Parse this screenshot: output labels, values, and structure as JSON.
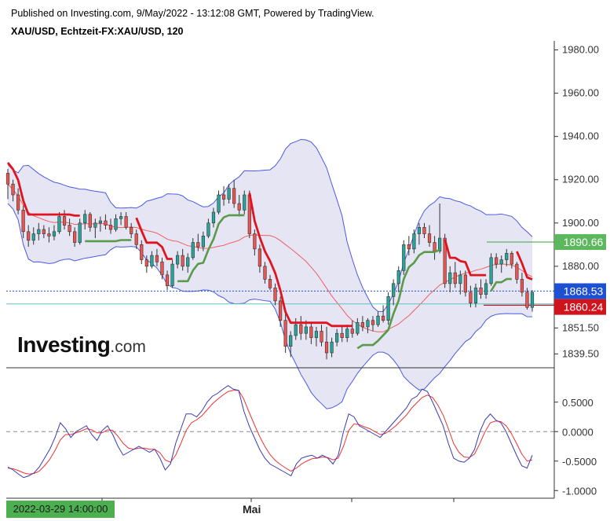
{
  "header": {
    "published": "Published on Investing.com, 9/May/2022 - 13:12:08 GMT, Powered by TradingView.",
    "symbol": "XAU/USD, Echtzeit-FX:XAU/USD, 120"
  },
  "logo": {
    "brand": "Investing",
    "suffix": ".com"
  },
  "x_axis": {
    "date_badge": "2022-03-29 14:00:00",
    "month_label": "Mai"
  },
  "colors": {
    "bull": "#26a69a",
    "bear": "#ef5350",
    "supertrend_up": "#5a9a4a",
    "supertrend_down": "#e0141e",
    "band_fill": "#e5e5f4",
    "band_line": "#4a5ae0",
    "ma_line": "#f06060",
    "osc_fast": "#3a3ab0",
    "osc_slow": "#ee3333",
    "current_price": "#1e50d2",
    "level_low": "#d0141e",
    "level_high": "#5cb85c",
    "teal_line": "#62c2c2"
  },
  "chart_data": [
    {
      "type": "candlestick",
      "title": "XAU/USD, Echtzeit-FX:XAU/USD, 120",
      "price_axis_ticks": [
        "1980.00",
        "1960.00",
        "1940.00",
        "1920.00",
        "1900.00",
        "1880.00",
        "1851.50",
        "1839.50"
      ],
      "ylim": [
        1836,
        1982
      ],
      "price_labels": [
        {
          "text": "1890.66",
          "kind": "level_high"
        },
        {
          "text": "1868.53",
          "kind": "current"
        },
        {
          "text": "1860.24",
          "kind": "level_low"
        }
      ],
      "candles": [
        [
          1923,
          1925,
          1911,
          1918
        ],
        [
          1918,
          1920,
          1910,
          1913
        ],
        [
          1913,
          1916,
          1904,
          1906
        ],
        [
          1906,
          1908,
          1893,
          1896
        ],
        [
          1896,
          1899,
          1889,
          1892
        ],
        [
          1892,
          1898,
          1890,
          1895
        ],
        [
          1895,
          1900,
          1892,
          1897
        ],
        [
          1897,
          1899,
          1893,
          1895
        ],
        [
          1895,
          1898,
          1891,
          1894
        ],
        [
          1894,
          1899,
          1892,
          1896
        ],
        [
          1896,
          1905,
          1895,
          1903
        ],
        [
          1903,
          1906,
          1897,
          1899
        ],
        [
          1899,
          1902,
          1894,
          1896
        ],
        [
          1896,
          1898,
          1889,
          1891
        ],
        [
          1891,
          1902,
          1890,
          1900
        ],
        [
          1900,
          1906,
          1897,
          1904
        ],
        [
          1904,
          1905,
          1896,
          1898
        ],
        [
          1898,
          1902,
          1893,
          1900
        ],
        [
          1900,
          1903,
          1896,
          1901
        ],
        [
          1901,
          1904,
          1897,
          1899
        ],
        [
          1899,
          1902,
          1895,
          1897
        ],
        [
          1897,
          1904,
          1896,
          1902
        ],
        [
          1902,
          1905,
          1899,
          1903
        ],
        [
          1903,
          1905,
          1897,
          1898
        ],
        [
          1898,
          1900,
          1893,
          1895
        ],
        [
          1895,
          1897,
          1888,
          1890
        ],
        [
          1890,
          1892,
          1881,
          1883
        ],
        [
          1883,
          1885,
          1877,
          1880
        ],
        [
          1880,
          1887,
          1879,
          1885
        ],
        [
          1885,
          1888,
          1880,
          1882
        ],
        [
          1882,
          1884,
          1874,
          1876
        ],
        [
          1876,
          1878,
          1869,
          1871
        ],
        [
          1871,
          1883,
          1870,
          1881
        ],
        [
          1881,
          1887,
          1879,
          1885
        ],
        [
          1885,
          1888,
          1878,
          1880
        ],
        [
          1880,
          1886,
          1877,
          1884
        ],
        [
          1884,
          1893,
          1883,
          1891
        ],
        [
          1891,
          1895,
          1887,
          1889
        ],
        [
          1889,
          1896,
          1887,
          1894
        ],
        [
          1894,
          1902,
          1893,
          1900
        ],
        [
          1900,
          1907,
          1898,
          1905
        ],
        [
          1905,
          1915,
          1904,
          1913
        ],
        [
          1913,
          1917,
          1908,
          1911
        ],
        [
          1911,
          1918,
          1909,
          1916
        ],
        [
          1916,
          1920,
          1907,
          1909
        ],
        [
          1909,
          1913,
          1903,
          1906
        ],
        [
          1906,
          1915,
          1904,
          1913
        ],
        [
          1913,
          1915,
          1893,
          1895
        ],
        [
          1895,
          1897,
          1885,
          1888
        ],
        [
          1888,
          1890,
          1877,
          1880
        ],
        [
          1880,
          1882,
          1872,
          1874
        ],
        [
          1874,
          1876,
          1869,
          1870
        ],
        [
          1870,
          1872,
          1862,
          1864
        ],
        [
          1864,
          1866,
          1852,
          1855
        ],
        [
          1855,
          1858,
          1840,
          1843
        ],
        [
          1843,
          1850,
          1838,
          1848
        ],
        [
          1848,
          1856,
          1846,
          1853
        ],
        [
          1853,
          1857,
          1846,
          1849
        ],
        [
          1849,
          1855,
          1846,
          1852
        ],
        [
          1852,
          1854,
          1844,
          1847
        ],
        [
          1847,
          1852,
          1843,
          1850
        ],
        [
          1850,
          1853,
          1843,
          1845
        ],
        [
          1845,
          1852,
          1837,
          1840
        ],
        [
          1840,
          1847,
          1838,
          1845
        ],
        [
          1845,
          1851,
          1843,
          1849
        ],
        [
          1849,
          1852,
          1845,
          1847
        ],
        [
          1847,
          1853,
          1845,
          1851
        ],
        [
          1851,
          1855,
          1847,
          1849
        ],
        [
          1849,
          1856,
          1848,
          1854
        ],
        [
          1854,
          1857,
          1850,
          1852
        ],
        [
          1852,
          1856,
          1849,
          1855
        ],
        [
          1855,
          1857,
          1850,
          1853
        ],
        [
          1853,
          1859,
          1852,
          1857
        ],
        [
          1857,
          1862,
          1854,
          1855
        ],
        [
          1855,
          1868,
          1853,
          1866
        ],
        [
          1866,
          1874,
          1862,
          1872
        ],
        [
          1872,
          1880,
          1868,
          1878
        ],
        [
          1878,
          1892,
          1876,
          1890
        ],
        [
          1890,
          1894,
          1885,
          1888
        ],
        [
          1888,
          1897,
          1886,
          1895
        ],
        [
          1895,
          1900,
          1890,
          1898
        ],
        [
          1898,
          1900,
          1893,
          1895
        ],
        [
          1895,
          1899,
          1889,
          1891
        ],
        [
          1891,
          1894,
          1883,
          1887
        ],
        [
          1887,
          1909,
          1886,
          1893
        ],
        [
          1893,
          1895,
          1870,
          1872
        ],
        [
          1872,
          1880,
          1868,
          1877
        ],
        [
          1877,
          1882,
          1870,
          1872
        ],
        [
          1872,
          1878,
          1867,
          1876
        ],
        [
          1876,
          1878,
          1866,
          1868
        ],
        [
          1868,
          1871,
          1861,
          1863
        ],
        [
          1863,
          1872,
          1861,
          1870
        ],
        [
          1870,
          1874,
          1865,
          1867
        ],
        [
          1867,
          1874,
          1865,
          1872
        ],
        [
          1872,
          1886,
          1871,
          1884
        ],
        [
          1884,
          1886,
          1879,
          1881
        ],
        [
          1881,
          1885,
          1877,
          1883
        ],
        [
          1883,
          1888,
          1880,
          1886
        ],
        [
          1886,
          1887,
          1879,
          1881
        ],
        [
          1881,
          1882,
          1872,
          1874
        ],
        [
          1874,
          1877,
          1866,
          1868
        ],
        [
          1868,
          1870,
          1860,
          1861
        ],
        [
          1861,
          1869,
          1859,
          1868
        ]
      ],
      "overlays": {
        "supertrend": "step line, red above price / green below price",
        "bollinger_bands": "upper/lower bands with shaded fill",
        "moving_average": "red thin line"
      }
    },
    {
      "type": "line",
      "title": "",
      "ylim": [
        -1.05,
        0.95
      ],
      "y_ticks": [
        "0.5000",
        "0.0000",
        "-0.5000",
        "-1.0000"
      ],
      "zero_line": "dashed",
      "series": [
        {
          "values": [
            -0.6,
            -0.65,
            -0.72,
            -0.78,
            -0.75,
            -0.7,
            -0.6,
            -0.45,
            -0.3,
            -0.1,
            0.15,
            0.05,
            -0.1,
            0.0,
            0.05,
            0.1,
            -0.05,
            -0.15,
            0.02,
            0.1,
            -0.05,
            -0.25,
            -0.4,
            -0.35,
            -0.3,
            -0.25,
            -0.3,
            -0.35,
            -0.3,
            -0.45,
            -0.65,
            -0.55,
            -0.2,
            0.05,
            0.3,
            0.3,
            0.25,
            0.35,
            0.5,
            0.6,
            0.65,
            0.72,
            0.78,
            0.72,
            0.7,
            0.35,
            0.1,
            -0.1,
            -0.3,
            -0.45,
            -0.55,
            -0.6,
            -0.65,
            -0.7,
            -0.75,
            -0.55,
            -0.45,
            -0.42,
            -0.4,
            -0.45,
            -0.4,
            -0.45,
            -0.55,
            -0.4,
            0.0,
            0.3,
            0.25,
            0.1,
            0.05,
            0.0,
            -0.05,
            -0.1,
            0.0,
            0.1,
            0.2,
            0.3,
            0.4,
            0.55,
            0.6,
            0.72,
            0.68,
            0.5,
            0.3,
            0.1,
            -0.2,
            -0.45,
            -0.5,
            -0.52,
            -0.45,
            -0.3,
            0.0,
            0.2,
            0.3,
            0.2,
            0.15,
            0.0,
            -0.2,
            -0.4,
            -0.58,
            -0.62,
            -0.4
          ]
        },
        {
          "values": [
            -0.62,
            -0.63,
            -0.66,
            -0.7,
            -0.72,
            -0.71,
            -0.67,
            -0.58,
            -0.47,
            -0.32,
            -0.14,
            -0.05,
            -0.05,
            -0.02,
            0.01,
            0.05,
            0.03,
            -0.02,
            -0.02,
            0.03,
            0.02,
            -0.08,
            -0.2,
            -0.28,
            -0.3,
            -0.28,
            -0.28,
            -0.3,
            -0.3,
            -0.36,
            -0.48,
            -0.52,
            -0.4,
            -0.2,
            0.02,
            0.15,
            0.2,
            0.27,
            0.37,
            0.47,
            0.55,
            0.62,
            0.68,
            0.7,
            0.7,
            0.55,
            0.33,
            0.12,
            -0.08,
            -0.25,
            -0.39,
            -0.49,
            -0.56,
            -0.62,
            -0.67,
            -0.62,
            -0.55,
            -0.5,
            -0.46,
            -0.45,
            -0.43,
            -0.44,
            -0.48,
            -0.45,
            -0.25,
            0.02,
            0.13,
            0.12,
            0.08,
            0.05,
            0.0,
            -0.05,
            -0.03,
            0.03,
            0.1,
            0.19,
            0.28,
            0.4,
            0.49,
            0.58,
            0.62,
            0.58,
            0.45,
            0.28,
            0.05,
            -0.2,
            -0.35,
            -0.43,
            -0.44,
            -0.38,
            -0.2,
            0.0,
            0.15,
            0.18,
            0.17,
            0.1,
            -0.03,
            -0.2,
            -0.38,
            -0.5,
            -0.48
          ]
        }
      ]
    }
  ]
}
